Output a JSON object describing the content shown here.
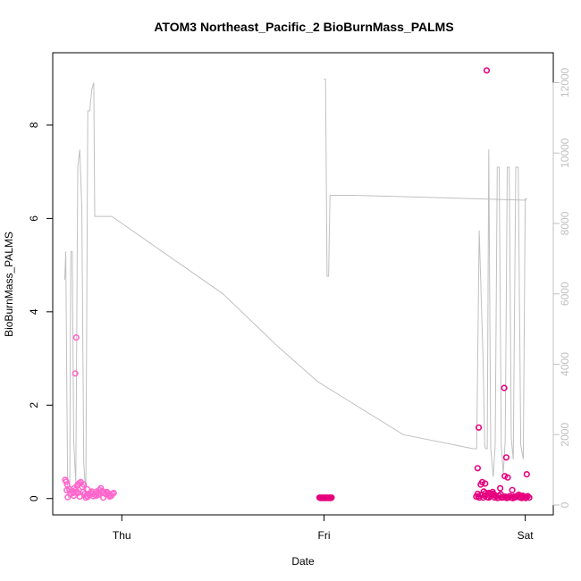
{
  "chart_data": {
    "type": "scatter",
    "title": "ATOM3 Northeast_Pacific_2 BioBurnMass_PALMS",
    "xlabel": "Date",
    "ylabel": "BioBurnMass_PALMS",
    "xlim": [
      0,
      100
    ],
    "x_ticks": [
      {
        "x": 13.8,
        "label": "Thu"
      },
      {
        "x": 54.2,
        "label": "Fri"
      },
      {
        "x": 94.4,
        "label": "Sat"
      }
    ],
    "ylim": [
      -0.35,
      9.55
    ],
    "y_ticks": [
      0,
      2,
      4,
      6,
      8
    ],
    "y2lim": [
      -280,
      12850
    ],
    "y2_ticks": [
      0,
      2000,
      4000,
      6000,
      8000,
      10000,
      12000
    ],
    "grid": false,
    "legend": "none",
    "colors": {
      "points_dark": "#e6007e",
      "points_light": "#ff66cc",
      "altitude_line": "#c0c0c0"
    },
    "series": [
      {
        "kind": "points",
        "axis": "left",
        "x": [
          2.5,
          2.7,
          2.9,
          3.3,
          3.6,
          3.9,
          4.1,
          4.3,
          4.6,
          4.9,
          5.1,
          5.3,
          5.6,
          5.9,
          6.1,
          6.4,
          6.7,
          7.0,
          7.3,
          7.6,
          7.9,
          8.1,
          8.4,
          8.7,
          9.0,
          9.3,
          9.6,
          9.9,
          10.2,
          10.5,
          10.8,
          11.0,
          11.3,
          11.6,
          11.9,
          12.2,
          2.8,
          4.2,
          5.4,
          6.6,
          7.8,
          9.1,
          10.1,
          11.4,
          3.0,
          5.0,
          6.9,
          8.8,
          11.7,
          4.7,
          6.2,
          53.3,
          53.5,
          53.7,
          53.9,
          54.1,
          54.3,
          54.5,
          54.7,
          54.9,
          55.1,
          55.3,
          55.5,
          55.7,
          84.6,
          84.9,
          85.2,
          85.5,
          85.7,
          86.0,
          86.3,
          86.5,
          86.8,
          87.1,
          87.4,
          87.7,
          88.0,
          88.3,
          88.6,
          88.9,
          89.2,
          89.5,
          89.8,
          90.1,
          90.4,
          90.7,
          91.0,
          91.3,
          91.6,
          91.9,
          92.2,
          92.5,
          92.8,
          93.1,
          93.4,
          93.7,
          94.0,
          94.3,
          94.6,
          94.9,
          95.2,
          85.0,
          86.1,
          87.2,
          88.4,
          89.6,
          90.8,
          92.0,
          93.3,
          94.5,
          4.7,
          4.5,
          85.1,
          86.7,
          84.9,
          85.8,
          86.4,
          90.2,
          90.6,
          90.3,
          90.9,
          89.4,
          86.9,
          87.9,
          91.8,
          93.9,
          94.7
        ],
        "y": [
          0.4,
          0.36,
          0.3,
          0.2,
          0.1,
          0.16,
          0.12,
          0.22,
          0.18,
          0.28,
          0.3,
          0.33,
          0.35,
          0.25,
          0.14,
          0.1,
          0.06,
          0.04,
          0.08,
          0.12,
          0.1,
          0.05,
          0.08,
          0.06,
          0.12,
          0.18,
          0.22,
          0.16,
          0.12,
          0.1,
          0.14,
          0.12,
          0.08,
          0.06,
          0.1,
          0.12,
          0.18,
          0.06,
          0.04,
          0.02,
          0.15,
          0.08,
          0.02,
          0.04,
          0.03,
          0.12,
          0.2,
          0.15,
          0.06,
          0.14,
          0.3,
          0.02,
          0.01,
          0.02,
          0.01,
          0.02,
          0.01,
          0.02,
          0.01,
          0.02,
          0.01,
          0.02,
          0.01,
          0.02,
          0.04,
          0.1,
          0.02,
          0.3,
          0.08,
          0.02,
          0.06,
          0.12,
          0.03,
          0.02,
          0.05,
          0.08,
          0.1,
          0.02,
          0.04,
          0.01,
          0.06,
          0.09,
          0.02,
          0.03,
          0.04,
          0.01,
          0.02,
          0.05,
          0.02,
          0.01,
          0.04,
          0.03,
          0.06,
          0.08,
          0.02,
          0.01,
          0.04,
          0.02,
          0.03,
          0.05,
          0.02,
          0.05,
          0.15,
          0.12,
          0.07,
          0.02,
          0.03,
          0.01,
          0.04,
          0.01,
          3.45,
          2.68,
          1.52,
          9.17,
          0.65,
          0.35,
          0.32,
          2.37,
          0.88,
          0.48,
          0.45,
          0.22,
          0.1,
          0.14,
          0.18,
          0.06,
          0.52
        ]
      },
      {
        "kind": "line",
        "axis": "right",
        "x": [
          2.4,
          2.6,
          2.8,
          3.0,
          3.2,
          3.4,
          3.6,
          3.9,
          4.2,
          4.6,
          5.0,
          5.4,
          5.8,
          6.2,
          6.6,
          7.0,
          7.4,
          7.8,
          8.2,
          8.4,
          8.6,
          8.8,
          9.0,
          9.2,
          9.4,
          9.6,
          9.8,
          10.0,
          10.2,
          10.4,
          10.8,
          11.3,
          11.8,
          34.0,
          45.0,
          53.0,
          70.0,
          84.0,
          84.6,
          84.7,
          85.2,
          86.0,
          86.3,
          86.5,
          86.8,
          87.1,
          87.5,
          88.0,
          88.4,
          88.8,
          89.2,
          89.6,
          90.0,
          90.4,
          90.8,
          91.2,
          91.6,
          92.0,
          92.5,
          93.0,
          93.5,
          94.0,
          94.4,
          94.8
        ],
        "y": [
          6400,
          7200,
          3500,
          300,
          200,
          400,
          7200,
          7200,
          1800,
          600,
          9600,
          10100,
          8500,
          1200,
          300,
          11200,
          11200,
          11800,
          12000,
          8200,
          8200,
          8200,
          8200,
          8200,
          8200,
          8200,
          8200,
          8200,
          8200,
          8200,
          8200,
          8200,
          8200,
          6000,
          4500,
          3500,
          2000,
          1600,
          1600,
          1600,
          7800,
          4000,
          1700,
          1600,
          1600,
          10100,
          1600,
          800,
          1700,
          9600,
          9600,
          1700,
          900,
          1800,
          9600,
          9600,
          1900,
          1300,
          9600,
          9600,
          1700,
          1300,
          8700,
          8700
        ]
      },
      {
        "kind": "line",
        "axis": "right",
        "x": [
          54.2,
          54.5,
          54.8,
          55.1,
          55.4,
          60.0,
          70.0,
          80.0,
          90.0,
          94.6
        ],
        "y": [
          12100,
          12100,
          6500,
          6500,
          8800,
          8800,
          8760,
          8720,
          8680,
          8660
        ]
      }
    ]
  }
}
